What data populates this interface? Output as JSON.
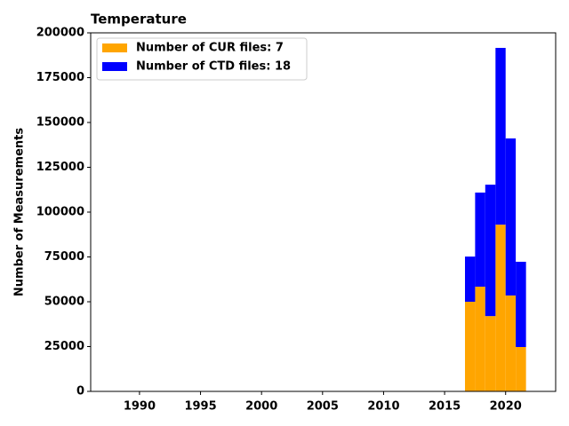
{
  "chart_data": {
    "type": "histogram",
    "title": "Temperature",
    "ylabel": "Number of Measurements",
    "bins": [
      2016.67,
      2017.5,
      2018.33,
      2019.17,
      2020.0,
      2020.83,
      2021.67
    ],
    "series": [
      {
        "name": "Number of CUR files: 7",
        "color": "#ffa500",
        "values": [
          50000,
          58400,
          42000,
          93000,
          53500,
          24750
        ]
      },
      {
        "name": "Number of CTD files: 18",
        "color": "#0000ff",
        "values": [
          25200,
          52500,
          73300,
          98600,
          87600,
          47550
        ]
      }
    ],
    "stacked": true,
    "xlim": [
      1986,
      2024.1
    ],
    "xticks": [
      1990,
      1995,
      2000,
      2005,
      2010,
      2015,
      2020
    ],
    "ylim": [
      0,
      200000
    ],
    "yticks": [
      0,
      25000,
      50000,
      75000,
      100000,
      125000,
      150000,
      175000,
      200000
    ],
    "legend": "upper left"
  }
}
